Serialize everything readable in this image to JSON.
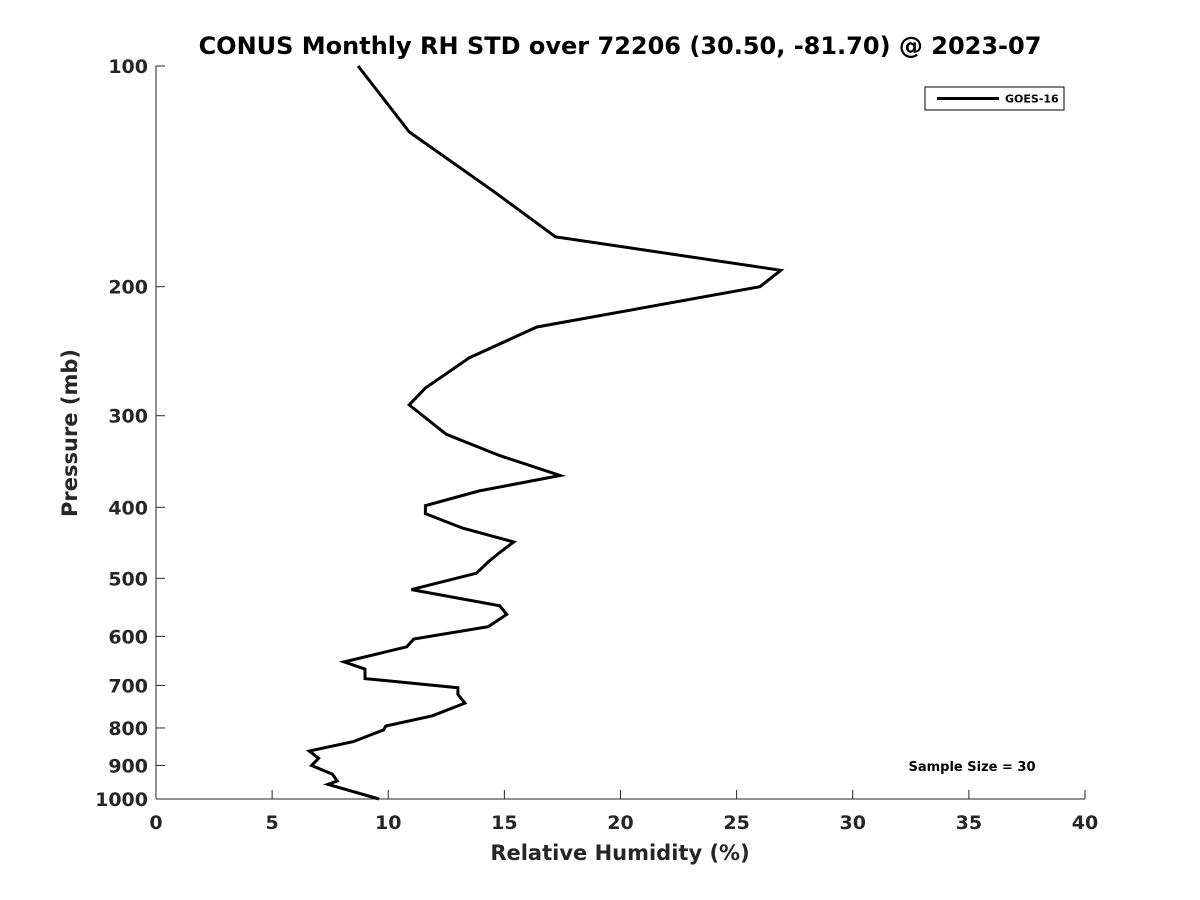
{
  "chart_data": {
    "type": "line",
    "title": "CONUS Monthly RH STD over 72206 (30.50, -81.70) @ 2023-07",
    "xlabel": "Relative Humidity (%)",
    "ylabel": "Pressure (mb)",
    "xlim": [
      0,
      40
    ],
    "ylim": [
      1000,
      100
    ],
    "yscale": "log",
    "y_reversed": true,
    "grid": false,
    "legend_position": "top-right",
    "xticks": [
      0,
      5,
      10,
      15,
      20,
      25,
      30,
      35,
      40
    ],
    "xtick_labels": [
      "0",
      "5",
      "10",
      "15",
      "20",
      "25",
      "30",
      "35",
      "40"
    ],
    "yticks": [
      100,
      200,
      300,
      400,
      500,
      600,
      700,
      800,
      900,
      1000
    ],
    "ytick_labels": [
      "100",
      "200",
      "300",
      "400",
      "500",
      "600",
      "700",
      "800",
      "900",
      "1000"
    ],
    "annotation": "Sample Size = 30",
    "series": [
      {
        "name": "GOES-16",
        "color": "#000000",
        "x": [
          8.7,
          10.9,
          14.5,
          17.2,
          26.9,
          26.0,
          16.4,
          13.5,
          11.6,
          10.9,
          12.5,
          14.8,
          17.4,
          13.9,
          11.6,
          11.6,
          13.2,
          15.4,
          14.8,
          14.3,
          13.8,
          11.0,
          14.8,
          15.1,
          14.3,
          11.1,
          10.8,
          8.1,
          9.0,
          9.0,
          13.0,
          13.0,
          13.3,
          11.9,
          9.9,
          9.8,
          8.5,
          6.6,
          7.0,
          6.7,
          7.6,
          7.8,
          7.4,
          9.6
        ],
        "y": [
          100,
          123,
          148,
          171,
          190,
          200,
          227,
          250,
          275,
          290,
          318,
          340,
          362,
          380,
          398,
          408,
          427,
          446,
          461,
          475,
          492,
          518,
          545,
          560,
          582,
          605,
          620,
          650,
          665,
          685,
          705,
          720,
          740,
          770,
          795,
          805,
          835,
          860,
          880,
          900,
          925,
          945,
          955,
          1000
        ]
      }
    ]
  }
}
